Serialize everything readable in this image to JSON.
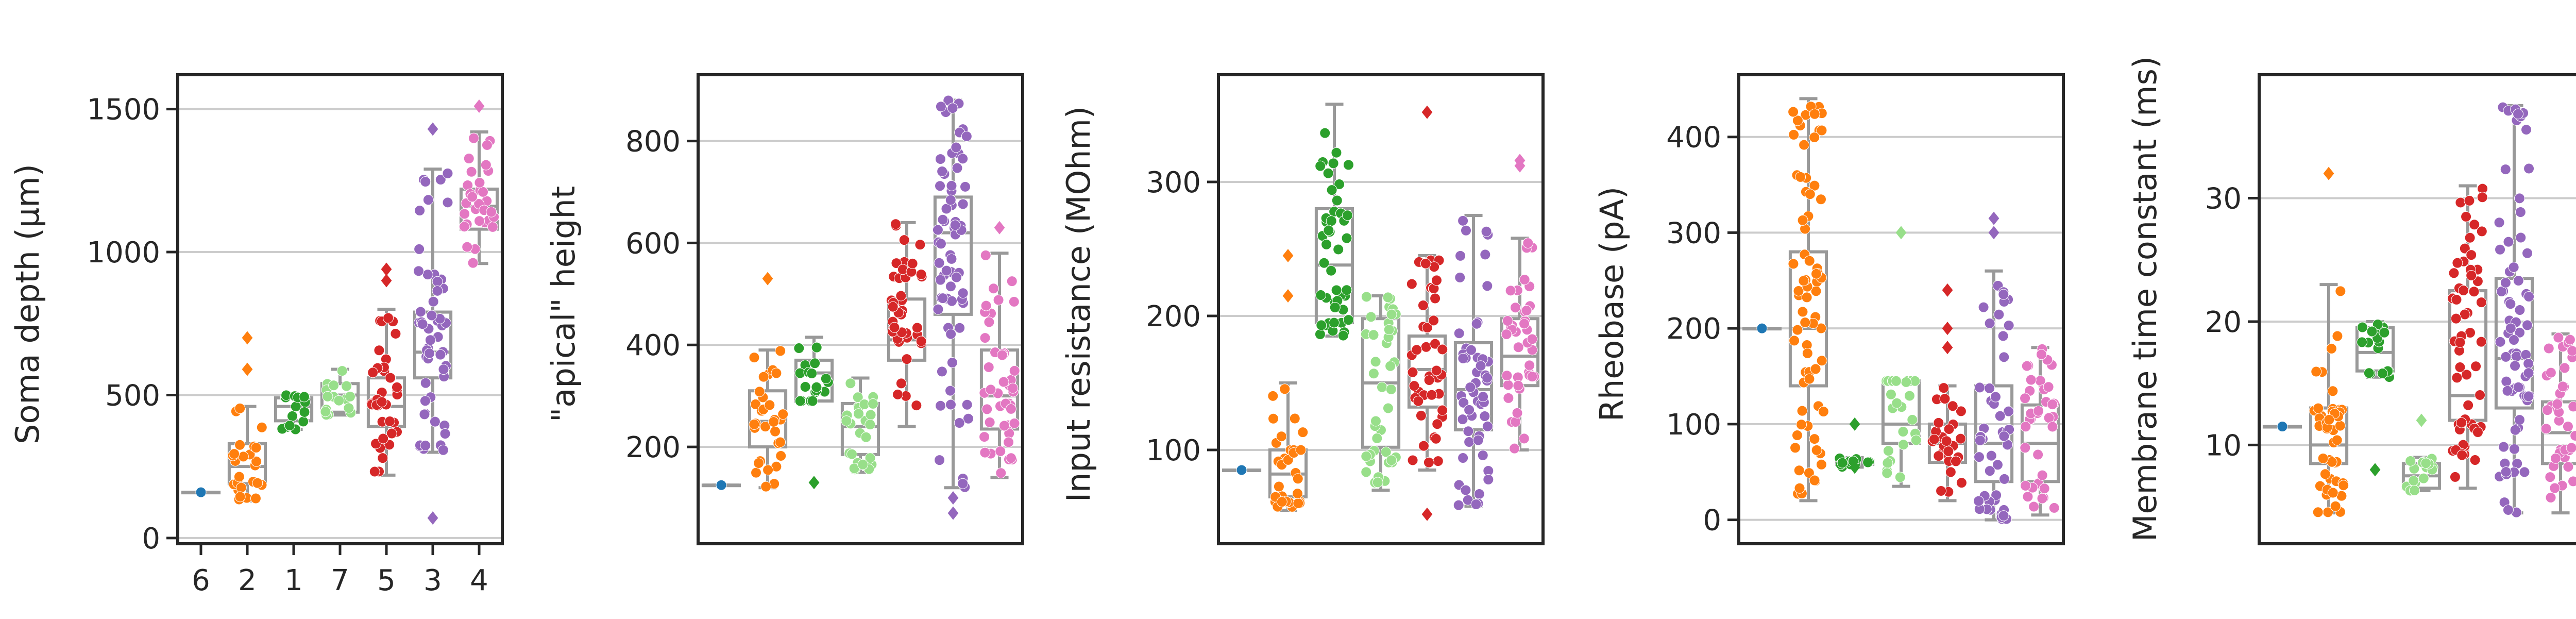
{
  "cluster_order": [
    "6",
    "2",
    "1",
    "7",
    "5",
    "3",
    "4"
  ],
  "cluster_colors": [
    "#1f77b4",
    "#ff7f0e",
    "#2ca02c",
    "#98df8a",
    "#d62728",
    "#9467bd",
    "#e377c2"
  ],
  "chart_data": [
    {
      "type": "boxplot with swarm",
      "ylabel": "Soma depth (μm)",
      "ylim": [
        -20,
        1620
      ],
      "yticks": [
        0,
        500,
        1000,
        1500
      ],
      "show_xticks": true,
      "categories": [
        "6",
        "2",
        "1",
        "7",
        "5",
        "3",
        "4"
      ],
      "boxes": [
        {
          "q1": 160,
          "median": 160,
          "q3": 160,
          "whislo": 160,
          "whishi": 160,
          "outliers": []
        },
        {
          "q1": 190,
          "median": 250,
          "q3": 330,
          "whislo": 130,
          "whishi": 460,
          "outliers": [
            590,
            700
          ]
        },
        {
          "q1": 410,
          "median": 460,
          "q3": 490,
          "whislo": 380,
          "whishi": 500,
          "outliers": []
        },
        {
          "q1": 440,
          "median": 500,
          "q3": 540,
          "whislo": 430,
          "whishi": 590,
          "outliers": []
        },
        {
          "q1": 390,
          "median": 460,
          "q3": 560,
          "whislo": 220,
          "whishi": 800,
          "outliers": [
            900,
            940
          ]
        },
        {
          "q1": 560,
          "median": 650,
          "q3": 790,
          "whislo": 300,
          "whishi": 1290,
          "outliers": [
            70,
            1430
          ]
        },
        {
          "q1": 1080,
          "median": 1160,
          "q3": 1220,
          "whislo": 960,
          "whishi": 1420,
          "outliers": [
            1510
          ]
        }
      ]
    },
    {
      "type": "boxplot with swarm",
      "ylabel": "\"apical\" height",
      "ylim": [
        10,
        930
      ],
      "yticks": [
        200,
        400,
        600,
        800
      ],
      "show_xticks": false,
      "categories": [
        "6",
        "2",
        "1",
        "7",
        "5",
        "3",
        "4"
      ],
      "boxes": [
        {
          "q1": 125,
          "median": 125,
          "q3": 125,
          "whislo": 125,
          "whishi": 125,
          "outliers": []
        },
        {
          "q1": 200,
          "median": 250,
          "q3": 310,
          "whislo": 120,
          "whishi": 390,
          "outliers": [
            530
          ]
        },
        {
          "q1": 290,
          "median": 345,
          "q3": 370,
          "whislo": 290,
          "whishi": 415,
          "outliers": [
            130
          ]
        },
        {
          "q1": 185,
          "median": 240,
          "q3": 285,
          "whislo": 150,
          "whishi": 335,
          "outliers": []
        },
        {
          "q1": 370,
          "median": 410,
          "q3": 490,
          "whislo": 240,
          "whishi": 640,
          "outliers": []
        },
        {
          "q1": 460,
          "median": 620,
          "q3": 690,
          "whislo": 120,
          "whishi": 880,
          "outliers": [
            70,
            100
          ]
        },
        {
          "q1": 235,
          "median": 300,
          "q3": 390,
          "whislo": 140,
          "whishi": 580,
          "outliers": [
            630
          ]
        }
      ]
    },
    {
      "type": "boxplot with swarm",
      "ylabel": "Input resistance (MOhm)",
      "ylim": [
        30,
        380
      ],
      "yticks": [
        100,
        200,
        300
      ],
      "show_xticks": false,
      "categories": [
        "6",
        "2",
        "1",
        "7",
        "5",
        "3",
        "4"
      ],
      "boxes": [
        {
          "q1": 85,
          "median": 85,
          "q3": 85,
          "whislo": 85,
          "whishi": 85,
          "outliers": []
        },
        {
          "q1": 65,
          "median": 82,
          "q3": 100,
          "whislo": 55,
          "whishi": 150,
          "outliers": [
            215,
            245
          ]
        },
        {
          "q1": 195,
          "median": 238,
          "q3": 280,
          "whislo": 185,
          "whishi": 358,
          "outliers": []
        },
        {
          "q1": 102,
          "median": 150,
          "q3": 198,
          "whislo": 70,
          "whishi": 215,
          "outliers": []
        },
        {
          "q1": 132,
          "median": 160,
          "q3": 185,
          "whislo": 85,
          "whishi": 245,
          "outliers": [
            52,
            352
          ]
        },
        {
          "q1": 115,
          "median": 145,
          "q3": 180,
          "whislo": 58,
          "whishi": 275,
          "outliers": []
        },
        {
          "q1": 148,
          "median": 170,
          "q3": 198,
          "whislo": 100,
          "whishi": 258,
          "outliers": [
            312,
            316
          ]
        }
      ]
    },
    {
      "type": "boxplot with swarm",
      "ylabel": "Rheobase (pA)",
      "ylim": [
        -25,
        465
      ],
      "yticks": [
        0,
        100,
        200,
        300,
        400
      ],
      "show_xticks": false,
      "categories": [
        "6",
        "2",
        "1",
        "7",
        "5",
        "3",
        "4"
      ],
      "boxes": [
        {
          "q1": 200,
          "median": 200,
          "q3": 200,
          "whislo": 200,
          "whishi": 200,
          "outliers": []
        },
        {
          "q1": 140,
          "median": 200,
          "q3": 280,
          "whislo": 20,
          "whishi": 440,
          "outliers": []
        },
        {
          "q1": 58,
          "median": 60,
          "q3": 62,
          "whislo": 55,
          "whishi": 65,
          "outliers": [
            55,
            100
          ]
        },
        {
          "q1": 80,
          "median": 100,
          "q3": 145,
          "whislo": 35,
          "whishi": 145,
          "outliers": [
            300
          ]
        },
        {
          "q1": 60,
          "median": 80,
          "q3": 100,
          "whislo": 20,
          "whishi": 140,
          "outliers": [
            180,
            200,
            240
          ]
        },
        {
          "q1": 40,
          "median": 80,
          "q3": 140,
          "whislo": 0,
          "whishi": 260,
          "outliers": [
            300,
            315
          ]
        },
        {
          "q1": 40,
          "median": 80,
          "q3": 120,
          "whislo": 5,
          "whishi": 180,
          "outliers": []
        }
      ]
    },
    {
      "type": "boxplot with swarm",
      "ylabel": "Membrane time constant (ms)",
      "ylim": [
        2,
        40
      ],
      "yticks": [
        10,
        20,
        30
      ],
      "show_xticks": false,
      "categories": [
        "6",
        "2",
        "1",
        "7",
        "5",
        "3",
        "4"
      ],
      "boxes": [
        {
          "q1": 11.5,
          "median": 11.5,
          "q3": 11.5,
          "whislo": 11.5,
          "whishi": 11.5,
          "outliers": []
        },
        {
          "q1": 8.5,
          "median": 10,
          "q3": 13,
          "whislo": 4.5,
          "whishi": 23,
          "outliers": [
            32
          ]
        },
        {
          "q1": 16,
          "median": 17.5,
          "q3": 19.5,
          "whislo": 15.5,
          "whishi": 20,
          "outliers": [
            8
          ]
        },
        {
          "q1": 6.5,
          "median": 7.5,
          "q3": 8.5,
          "whislo": 6.3,
          "whishi": 9,
          "outliers": [
            12
          ]
        },
        {
          "q1": 12,
          "median": 14,
          "q3": 22.5,
          "whislo": 6.5,
          "whishi": 31,
          "outliers": []
        },
        {
          "q1": 13,
          "median": 17,
          "q3": 23.5,
          "whislo": 4.5,
          "whishi": 37.5,
          "outliers": []
        },
        {
          "q1": 8.5,
          "median": 11,
          "q3": 13.5,
          "whislo": 4.5,
          "whishi": 19,
          "outliers": []
        }
      ]
    }
  ]
}
